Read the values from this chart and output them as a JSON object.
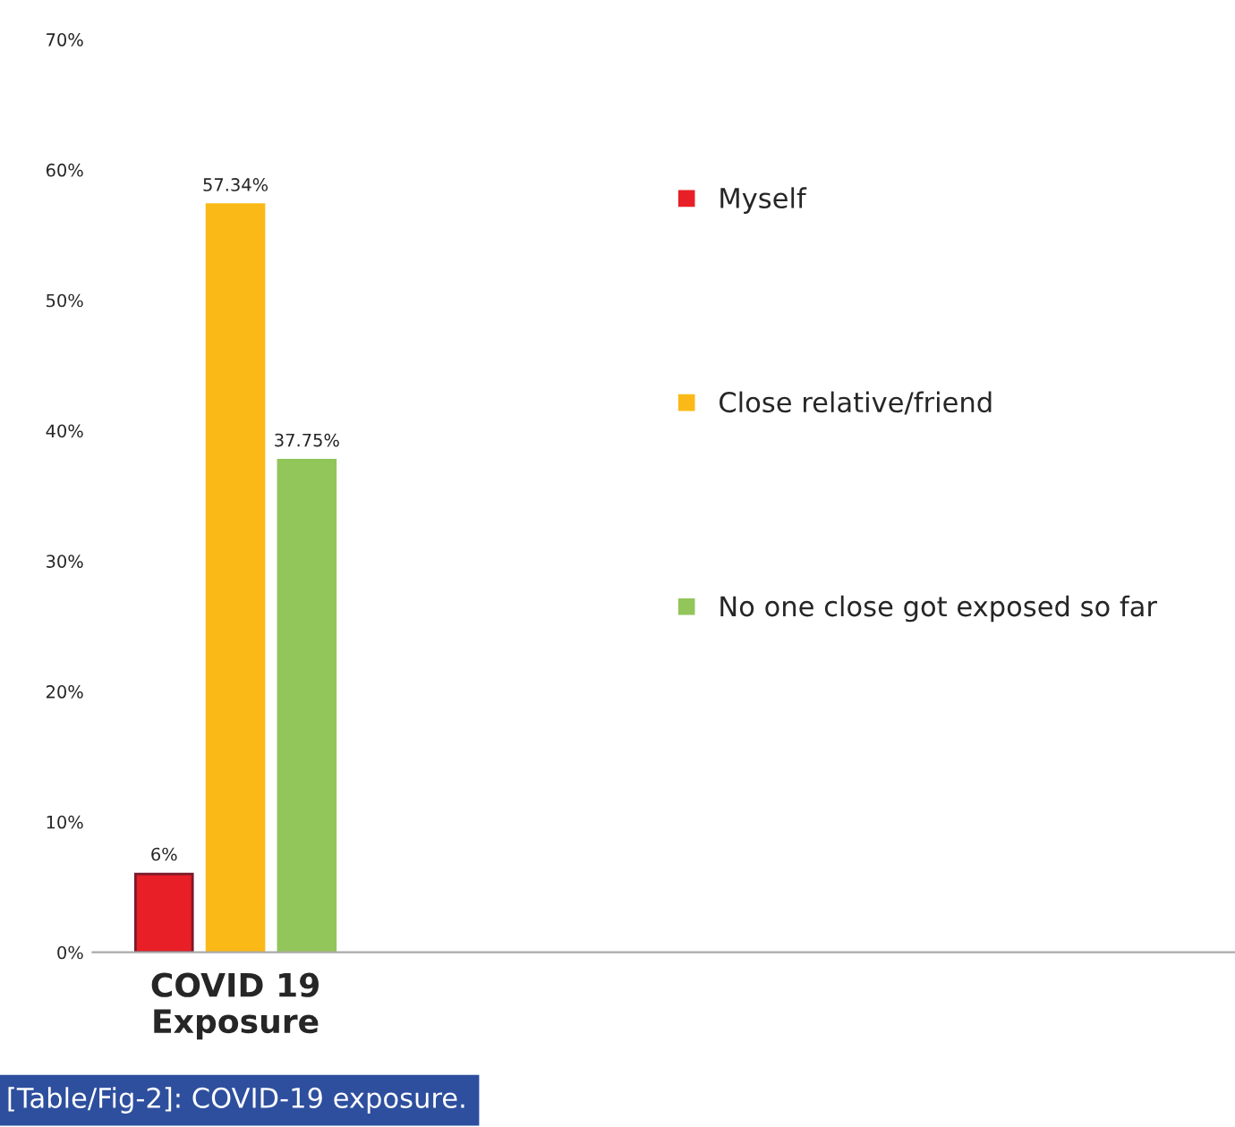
{
  "chart_data": {
    "type": "bar",
    "categories": [
      "COVID 19\nExposure",
      null,
      null,
      null
    ],
    "series": [
      {
        "name": "Myself",
        "color": "#e81f26",
        "values": [
          6,
          null,
          null,
          null
        ],
        "value_labels": [
          "6%",
          null,
          null,
          null
        ]
      },
      {
        "name": "Close relative/friend",
        "color": "#fbb917",
        "values": [
          57.34,
          null,
          null,
          null
        ],
        "value_labels": [
          "57.34%",
          null,
          null,
          null
        ]
      },
      {
        "name": "No one close got exposed so far",
        "color": "#92c55a",
        "values": [
          37.75,
          null,
          null,
          null
        ],
        "value_labels": [
          "37.75%",
          null,
          null,
          null
        ]
      }
    ],
    "ylim": [
      0,
      70
    ],
    "yticks": [
      {
        "value": 0,
        "label": "0%"
      },
      {
        "value": 10,
        "label": "10%"
      },
      {
        "value": 20,
        "label": "20%"
      },
      {
        "value": 30,
        "label": "30%"
      },
      {
        "value": 40,
        "label": "40%"
      },
      {
        "value": 50,
        "label": "50%"
      },
      {
        "value": 60,
        "label": "60%"
      },
      {
        "value": 70,
        "label": "70%"
      }
    ],
    "grid": false,
    "legend": "right",
    "annotations": [
      "[Table/Fig-2]: COVID-19 exposure."
    ]
  }
}
